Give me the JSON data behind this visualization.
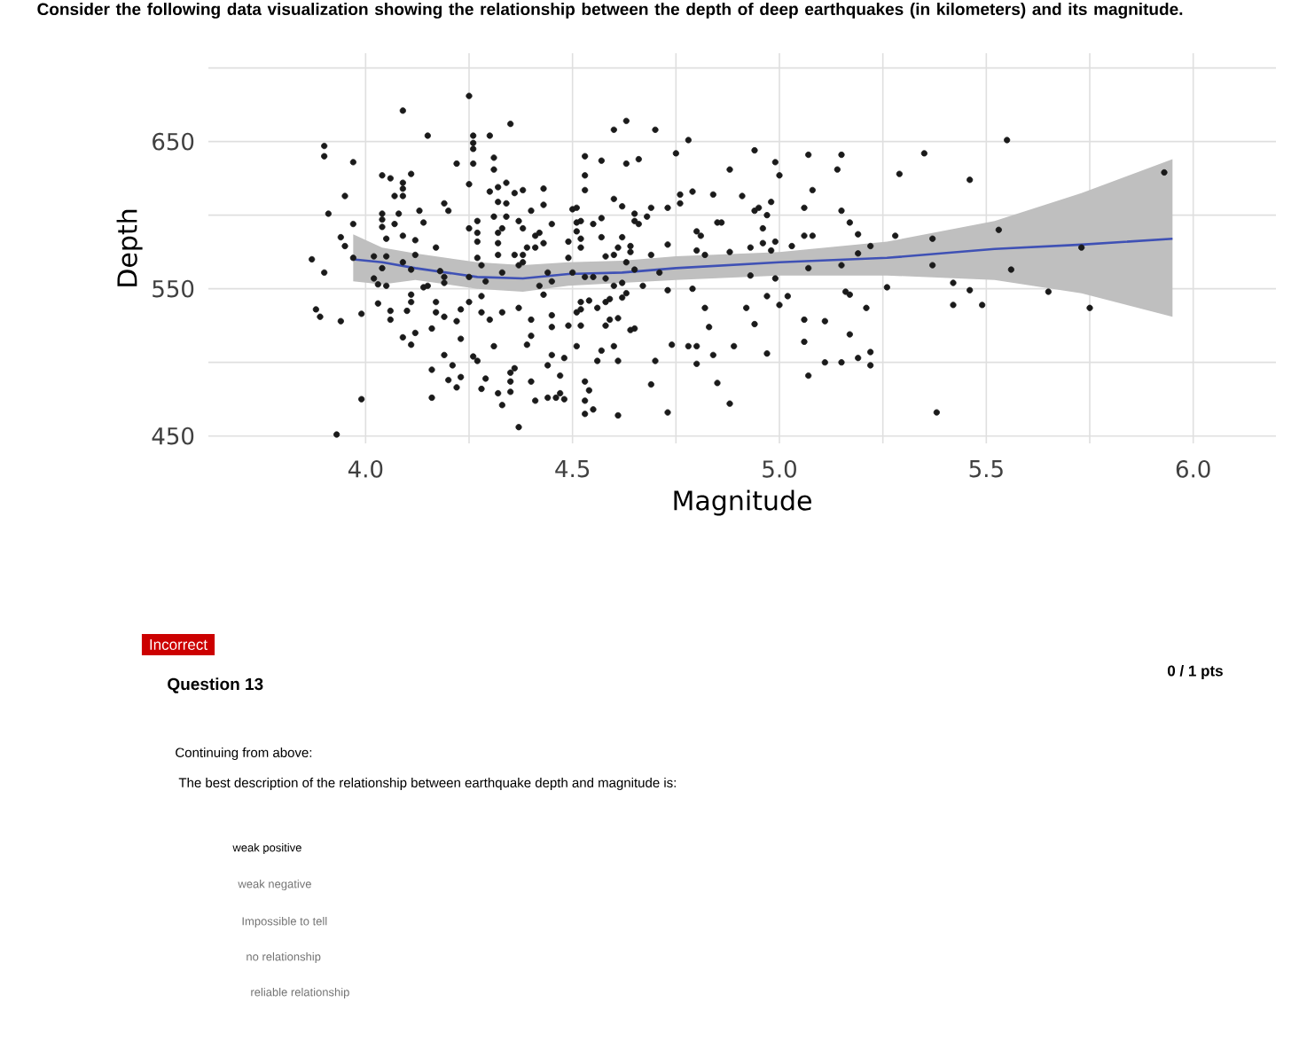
{
  "chart_data": {
    "type": "scatter",
    "title": "Consider the following data visualization showing the relationship between the depth of deep earthquakes (in kilometers) and its magnitude.",
    "xlabel": "Magnitude",
    "ylabel": "Depth",
    "xlim": [
      3.62,
      6.2
    ],
    "ylim": [
      445,
      710
    ],
    "xticks": [
      {
        "value": 4,
        "label": "4.0"
      },
      {
        "value": 4.25,
        "label": null
      },
      {
        "value": 4.5,
        "label": "4.5"
      },
      {
        "value": 4.75,
        "label": null
      },
      {
        "value": 5,
        "label": "5.0"
      },
      {
        "value": 5.25,
        "label": null
      },
      {
        "value": 5.5,
        "label": "5.5"
      },
      {
        "value": 5.75,
        "label": null
      },
      {
        "value": 6,
        "label": "6.0"
      }
    ],
    "yticks": [
      450,
      {
        "value": 500,
        "label": null
      },
      550,
      {
        "value": 600,
        "label": null
      },
      650,
      {
        "value": 700,
        "label": null
      }
    ],
    "grid": true,
    "series": [
      {
        "marker": "circle",
        "color": "#1a1a1a",
        "x": [
          4.25,
          4.09,
          4.35,
          4.15,
          3.9,
          3.9,
          4.26,
          4.26,
          4.26,
          4.3,
          3.97,
          4.22,
          4.26,
          4.31,
          4.31,
          4.04,
          4.06,
          4.11,
          4.09,
          4.09,
          4.09,
          4.07,
          3.95,
          3.91,
          3.97,
          4.04,
          4.04,
          4.04,
          4.07,
          4.08,
          4.09,
          4.05,
          4.12,
          4.13,
          4.14,
          4.19,
          4.2,
          4.17,
          4.12,
          3.94,
          3.95,
          3.87,
          3.9,
          3.97,
          4.02,
          4.05,
          4.04,
          4.09,
          4.11,
          4.02,
          4.03,
          4.05,
          4.14,
          4.15,
          4.18,
          4.19,
          4.19,
          4.25,
          4.29,
          4.27,
          4.28,
          4.27,
          4.27,
          4.25,
          4.27,
          4.32,
          4.32,
          4.32,
          4.31,
          4.34,
          4.33,
          4.32,
          4.34,
          4.3,
          4.32,
          4.34,
          4.25,
          4.36,
          4.38,
          4.37,
          4.38,
          4.4,
          4.43,
          4.43,
          4.45,
          4.41,
          4.42,
          4.43,
          4.39,
          4.41,
          4.36,
          4.38,
          4.38,
          4.33,
          4.37,
          4.44,
          4.42,
          4.45,
          4.43,
          4.49,
          4.49,
          4.5,
          4.5,
          4.51,
          4.53,
          4.57,
          4.53,
          4.53,
          4.51,
          4.52,
          4.51,
          4.52,
          4.52,
          4.57,
          4.55,
          4.57,
          4.58,
          4.6,
          4.61,
          4.62,
          4.6,
          4.62,
          4.6,
          4.53,
          4.55,
          4.58,
          4.6,
          4.63,
          3.99,
          3.94,
          3.89,
          3.88,
          4.03,
          4.06,
          4.06,
          4.1,
          4.11,
          4.11,
          4.09,
          4.11,
          4.12,
          4.16,
          4.17,
          4.17,
          4.19,
          4.22,
          4.23,
          4.25,
          4.23,
          4.19,
          4.21,
          4.16,
          4.2,
          4.22,
          4.23,
          4.16,
          3.99,
          3.93,
          4.26,
          4.27,
          4.28,
          4.28,
          4.3,
          4.33,
          4.37,
          4.31,
          4.29,
          4.28,
          4.32,
          4.33,
          4.35,
          4.35,
          4.35,
          4.36,
          4.37,
          4.4,
          4.41,
          4.39,
          4.4,
          4.4,
          4.44,
          4.45,
          4.47,
          4.48,
          4.44,
          4.46,
          4.47,
          4.48,
          4.45,
          4.45,
          4.49,
          4.51,
          4.52,
          4.51,
          4.52,
          4.54,
          4.52,
          4.56,
          4.58,
          4.59,
          4.62,
          4.59,
          4.61,
          4.58,
          4.6,
          4.57,
          4.56,
          4.61,
          4.53,
          4.54,
          4.53,
          4.53,
          4.55,
          4.61,
          4.63,
          4.7,
          4.78,
          4.75,
          4.66,
          4.63,
          4.94,
          4.99,
          5.0,
          5.07,
          5.15,
          5.14,
          5.35,
          5.29,
          5.46,
          4.88,
          5.08,
          4.76,
          4.79,
          4.84,
          4.91,
          4.69,
          4.73,
          4.76,
          4.65,
          4.68,
          4.65,
          4.66,
          4.94,
          4.95,
          4.97,
          4.98,
          5.06,
          5.15,
          5.17,
          4.8,
          4.81,
          4.85,
          4.86,
          4.96,
          5.06,
          5.08,
          5.19,
          5.28,
          5.37,
          4.64,
          4.64,
          4.73,
          4.8,
          4.82,
          4.88,
          4.93,
          4.96,
          4.98,
          4.99,
          5.03,
          5.22,
          5.19,
          4.69,
          4.63,
          4.65,
          4.71,
          5.07,
          5.15,
          5.37,
          4.93,
          4.99,
          4.62,
          4.67,
          4.73,
          4.79,
          4.97,
          5.0,
          5.02,
          5.26,
          5.16,
          5.17,
          5.42,
          5.46,
          5.42,
          4.82,
          4.92,
          4.94,
          4.83,
          4.64,
          4.65,
          5.06,
          5.11,
          5.21,
          5.17,
          4.74,
          4.78,
          4.8,
          4.89,
          4.97,
          5.06,
          4.7,
          4.84,
          4.8,
          5.11,
          5.15,
          5.19,
          5.22,
          5.22,
          5.07,
          4.69,
          4.85,
          4.88,
          4.73,
          5.38,
          5.55,
          5.93,
          5.53,
          5.56,
          5.73,
          5.49,
          5.65,
          5.75
        ],
        "values": [
          681,
          671,
          662,
          654,
          647,
          640,
          654,
          649,
          645,
          654,
          636,
          635,
          635,
          639,
          631,
          627,
          625,
          628,
          622,
          618,
          613,
          613,
          613,
          601,
          594,
          601,
          597,
          592,
          594,
          601,
          586,
          584,
          583,
          603,
          595,
          608,
          603,
          578,
          573,
          585,
          579,
          570,
          561,
          571,
          572,
          572,
          564,
          568,
          563,
          557,
          553,
          552,
          551,
          552,
          562,
          558,
          554,
          558,
          555,
          571,
          566,
          588,
          582,
          591,
          596,
          588,
          581,
          573,
          599,
          599,
          591,
          609,
          608,
          616,
          619,
          622,
          621,
          615,
          617,
          596,
          591,
          603,
          618,
          607,
          594,
          586,
          588,
          581,
          578,
          578,
          573,
          573,
          568,
          561,
          566,
          561,
          552,
          555,
          546,
          582,
          571,
          561,
          604,
          605,
          640,
          637,
          627,
          617,
          595,
          596,
          589,
          584,
          578,
          598,
          594,
          585,
          572,
          573,
          578,
          585,
          611,
          606,
          658,
          558,
          558,
          557,
          552,
          547,
          533,
          528,
          531,
          536,
          540,
          535,
          529,
          535,
          541,
          546,
          517,
          512,
          520,
          523,
          534,
          541,
          531,
          528,
          536,
          541,
          516,
          505,
          498,
          495,
          488,
          483,
          490,
          476,
          475,
          451,
          504,
          501,
          534,
          545,
          529,
          534,
          537,
          511,
          489,
          482,
          479,
          471,
          480,
          487,
          493,
          496,
          456,
          487,
          474,
          512,
          518,
          529,
          498,
          505,
          491,
          503,
          476,
          476,
          479,
          475,
          532,
          524,
          525,
          534,
          525,
          511,
          541,
          542,
          536,
          537,
          541,
          543,
          544,
          529,
          530,
          525,
          511,
          508,
          501,
          501,
          487,
          481,
          474,
          465,
          468,
          464,
          664,
          658,
          651,
          642,
          638,
          635,
          644,
          636,
          627,
          641,
          641,
          631,
          642,
          628,
          624,
          631,
          617,
          614,
          616,
          614,
          613,
          605,
          605,
          608,
          601,
          599,
          596,
          594,
          603,
          605,
          600,
          609,
          605,
          603,
          595,
          589,
          586,
          595,
          595,
          591,
          586,
          586,
          587,
          586,
          584,
          579,
          575,
          580,
          576,
          573,
          575,
          578,
          581,
          576,
          582,
          579,
          579,
          574,
          573,
          568,
          563,
          561,
          564,
          566,
          566,
          559,
          557,
          554,
          552,
          549,
          550,
          545,
          539,
          545,
          551,
          548,
          546,
          554,
          549,
          539,
          537,
          537,
          526,
          524,
          522,
          523,
          529,
          528,
          537,
          519,
          512,
          511,
          511,
          511,
          506,
          514,
          501,
          505,
          499,
          500,
          500,
          503,
          507,
          498,
          491,
          485,
          486,
          472,
          466,
          466,
          651,
          629,
          590,
          563,
          578,
          539,
          548,
          537
        ]
      },
      {
        "type": "line",
        "marker": "none",
        "color": "#3f51b5",
        "x": [
          3.97,
          4.04,
          4.12,
          4.27,
          4.38,
          4.49,
          4.62,
          4.75,
          5.0,
          5.26,
          5.52,
          5.73,
          5.95
        ],
        "values": [
          570,
          568,
          564,
          558,
          557,
          560,
          561,
          564,
          568,
          571,
          577,
          580,
          584
        ],
        "lower": [
          555,
          553,
          556,
          550,
          548,
          552,
          554,
          556,
          559,
          559,
          556,
          547,
          531
        ],
        "upper": [
          587,
          578,
          574,
          568,
          566,
          568,
          569,
          572,
          575,
          582,
          596,
          615,
          638
        ]
      }
    ],
    "annotations": [
      "Incorrect",
      "Question 13",
      "0 / 1 pts",
      "Continuing from above:",
      "The best description of the relationship between earthquake depth and magnitude is:",
      "weak positive",
      "weak negative",
      "Impossible to tell",
      "no relationship",
      "reliable relationship"
    ]
  }
}
